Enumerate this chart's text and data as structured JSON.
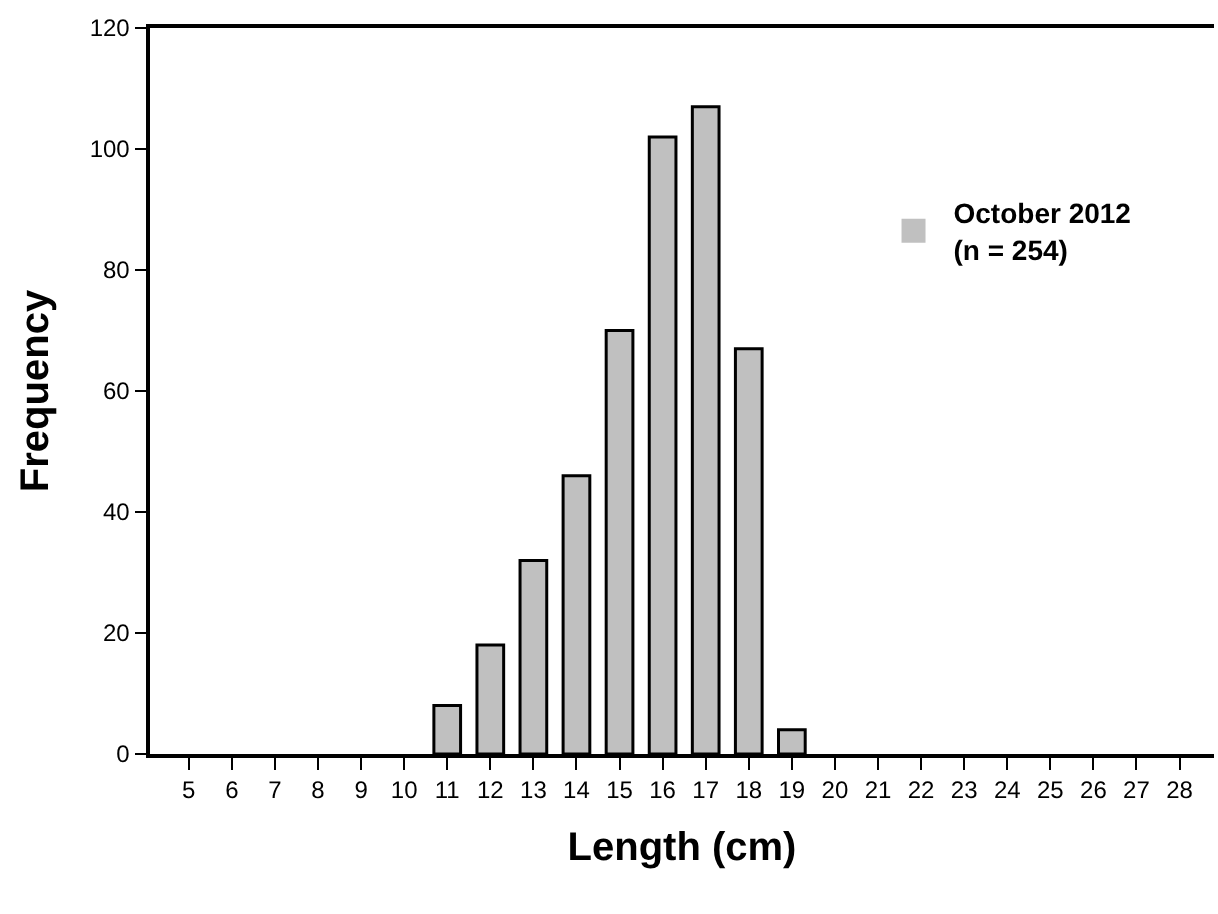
{
  "chart_data": {
    "type": "bar",
    "xlabel": "Length (cm)",
    "ylabel": "Frequency",
    "x": [
      5,
      6,
      7,
      8,
      9,
      10,
      11,
      12,
      13,
      14,
      15,
      16,
      17,
      18,
      19,
      20,
      21,
      22,
      23,
      24,
      25,
      26,
      27,
      28
    ],
    "series": [
      {
        "name": "October 2012\n(n = 254)",
        "color": "#c0c0c0",
        "values": [
          0,
          0,
          0,
          0,
          0,
          0,
          8,
          18,
          32,
          46,
          70,
          102,
          107,
          67,
          4,
          0,
          0,
          0,
          0,
          0,
          0,
          0,
          0,
          0
        ]
      }
    ],
    "xlim": [
      4.1,
      28.8
    ],
    "xticks": [
      5,
      6,
      7,
      8,
      9,
      10,
      11,
      12,
      13,
      14,
      15,
      16,
      17,
      18,
      19,
      20,
      21,
      22,
      23,
      24,
      25,
      26,
      27,
      28
    ],
    "ylim": [
      0,
      120
    ],
    "yticks": [
      0,
      20,
      40,
      60,
      80,
      100,
      120
    ],
    "legend": "right"
  }
}
